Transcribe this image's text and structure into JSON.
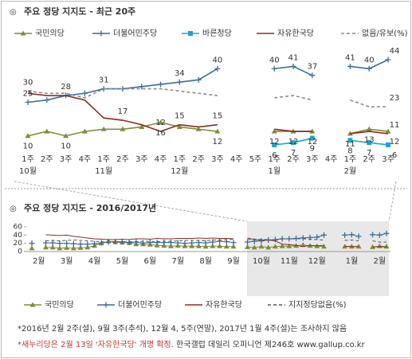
{
  "chart_data": [
    {
      "type": "line",
      "title": "주요 정당 지지도 - 최근 20주",
      "categories": [
        "1주",
        "2주",
        "3주",
        "4주",
        "1주",
        "2주",
        "3주",
        "4주",
        "1주",
        "2주",
        "3주",
        "4주",
        "5주",
        "1주",
        "2주",
        "3주",
        "4주",
        "1주",
        "2주",
        "3주"
      ],
      "months": [
        "10월",
        null,
        null,
        null,
        "11월",
        null,
        null,
        null,
        "12월",
        null,
        null,
        null,
        null,
        "1월",
        null,
        null,
        null,
        "2월",
        null,
        null
      ],
      "series": [
        {
          "name": "국민의당",
          "color": "#7f8c3c",
          "marker": "triangle",
          "values": [
            10,
            12,
            10,
            12,
            13,
            13,
            14,
            16,
            14,
            13,
            12,
            null,
            null,
            12,
            12,
            12,
            null,
            11,
            13,
            12
          ]
        },
        {
          "name": "더불어민주당",
          "color": "#3a6f9c",
          "marker": "plus",
          "values": [
            25,
            26,
            28,
            29,
            31,
            31,
            32,
            33,
            34,
            35,
            40,
            null,
            null,
            40,
            41,
            37,
            null,
            41,
            40,
            44
          ]
        },
        {
          "name": "바른정당",
          "color": "#1aa6c9",
          "marker": "square",
          "values": [
            null,
            null,
            null,
            null,
            null,
            null,
            null,
            null,
            null,
            null,
            null,
            null,
            null,
            6,
            7,
            9,
            null,
            8,
            7,
            6
          ]
        },
        {
          "name": "자유한국당",
          "color": "#8b2b25",
          "marker": "none",
          "values": [
            29,
            28,
            28,
            26,
            18,
            17,
            15,
            12,
            15,
            14,
            15,
            null,
            null,
            13,
            12,
            12,
            null,
            11,
            12,
            11
          ]
        },
        {
          "name": "없음/유보(%)",
          "color": "#8c8c8c",
          "marker": "none",
          "dashed": true,
          "values": [
            30,
            29,
            29,
            27,
            31,
            31,
            31,
            31,
            30,
            29,
            28,
            null,
            null,
            27,
            28,
            26,
            null,
            26,
            23,
            23
          ]
        }
      ]
    },
    {
      "type": "line",
      "title": "주요 정당 지지도 - 2016/2017년",
      "categories": [
        null,
        "2월",
        null,
        null,
        null,
        "3월",
        null,
        null,
        null,
        "4월",
        null,
        null,
        null,
        "5월",
        null,
        null,
        null,
        "6월",
        null,
        null,
        null,
        "7월",
        null,
        null,
        null,
        "8월",
        null,
        null,
        null,
        "9월",
        null,
        null,
        null,
        "10월",
        null,
        null,
        null,
        "11월",
        null,
        null,
        null,
        "12월",
        null,
        null,
        null,
        null,
        "1월",
        null,
        null,
        null,
        "2월",
        null
      ],
      "ylim": [
        0,
        60
      ],
      "yticks": [
        0,
        20,
        40,
        60
      ],
      "series": [
        {
          "name": "국민의당",
          "color": "#7f8c3c",
          "marker": "triangle",
          "values": [
            8,
            null,
            10,
            10,
            8,
            9,
            8,
            9,
            10,
            14,
            20,
            25,
            23,
            22,
            21,
            18,
            18,
            17,
            15,
            14,
            13,
            14,
            13,
            13,
            13,
            12,
            13,
            13,
            12,
            12,
            null,
            11,
            10,
            12,
            10,
            12,
            13,
            13,
            14,
            16,
            14,
            13,
            12,
            null,
            null,
            12,
            12,
            12,
            null,
            11,
            13,
            12
          ]
        },
        {
          "name": "더불어민주당",
          "color": "#3a6f9c",
          "marker": "plus",
          "values": [
            20,
            null,
            21,
            21,
            20,
            20,
            19,
            18,
            18,
            19,
            21,
            23,
            24,
            24,
            22,
            23,
            21,
            22,
            22,
            22,
            22,
            21,
            20,
            21,
            22,
            21,
            23,
            25,
            24,
            22,
            null,
            23,
            25,
            26,
            28,
            29,
            31,
            31,
            32,
            33,
            34,
            35,
            40,
            null,
            null,
            40,
            41,
            37,
            null,
            41,
            40,
            44
          ]
        },
        {
          "name": "자유한국당",
          "color": "#8b2b25",
          "marker": "none",
          "values": [
            41,
            null,
            41,
            40,
            39,
            40,
            37,
            35,
            33,
            31,
            30,
            29,
            29,
            30,
            29,
            31,
            31,
            30,
            32,
            31,
            31,
            32,
            32,
            32,
            33,
            32,
            33,
            32,
            32,
            31,
            null,
            33,
            29,
            28,
            28,
            26,
            18,
            17,
            15,
            12,
            15,
            14,
            15,
            null,
            null,
            13,
            12,
            12,
            null,
            11,
            12,
            11
          ]
        },
        {
          "name": "지지정당없음(%)",
          "color": "#555555",
          "marker": "none",
          "dashed": true,
          "values": [
            25,
            null,
            26,
            27,
            26,
            27,
            28,
            27,
            26,
            25,
            24,
            22,
            23,
            23,
            24,
            24,
            25,
            25,
            24,
            25,
            25,
            26,
            27,
            27,
            27,
            26,
            28,
            28,
            29,
            30,
            null,
            29,
            30,
            29,
            29,
            27,
            31,
            31,
            31,
            31,
            30,
            29,
            28,
            null,
            null,
            27,
            28,
            26,
            null,
            26,
            23,
            23
          ]
        }
      ]
    }
  ],
  "notes": [
    "*2016년 2월 2주(설), 9월 3주(추석), 12월 4, 5주(연말), 2017년 1월 4주(설)는 조사하지 않음",
    "*새누리당은 2월 13일 '자유한국당' 개명 확정.",
    "한국갤럽 데일리 오피니언 제246호 www.gallup.co.kr"
  ]
}
